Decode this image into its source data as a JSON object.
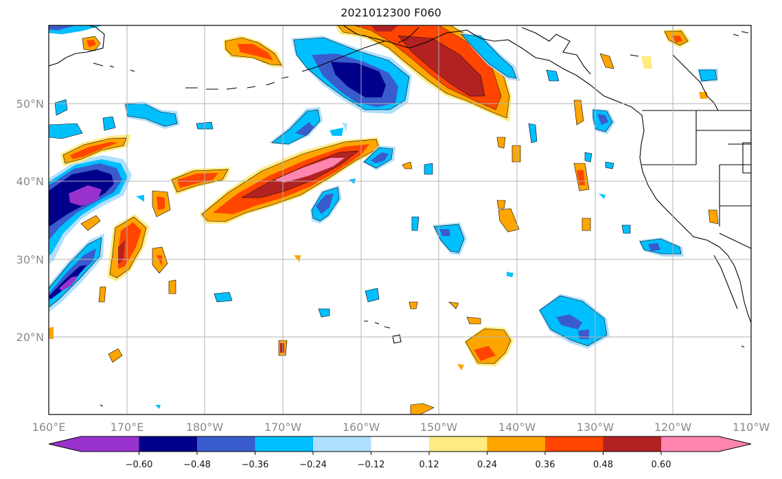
{
  "map": {
    "title": "2021012300 F060",
    "lon_ticks": [
      "160°E",
      "170°E",
      "180°W",
      "170°W",
      "160°W",
      "150°W",
      "140°W",
      "130°W",
      "120°W",
      "110°W"
    ],
    "lat_ticks": [
      "50°N",
      "40°N",
      "30°N",
      "20°N"
    ],
    "grid": true,
    "extent": {
      "lon_west": 160,
      "lon_east": 250,
      "lat_south": 10,
      "lat_north": 60
    },
    "colors": {
      "grid": "#b3b3b3",
      "coast": "#000000",
      "levels": [
        "#9932cc",
        "#00008b",
        "#3a5bcc",
        "#00bfff",
        "#b0e0ff",
        "#ffffff",
        "#ffeb80",
        "#ffa500",
        "#ff4500",
        "#b22222",
        "#ff85b0"
      ]
    }
  },
  "colorbar": {
    "tick_labels": [
      "−0.60",
      "−0.48",
      "−0.36",
      "−0.24",
      "−0.12",
      "0.12",
      "0.24",
      "0.36",
      "0.48",
      "0.60"
    ],
    "extend": "both",
    "orientation": "horizontal"
  }
}
